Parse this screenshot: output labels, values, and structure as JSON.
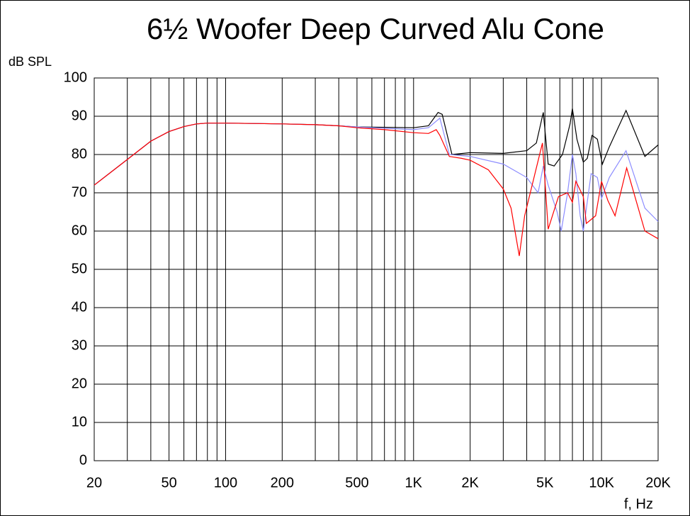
{
  "chart_data": {
    "type": "line",
    "title": "6½ Woofer Deep Curved Alu Cone",
    "ylabel": "dB SPL",
    "xlabel": "f, Hz",
    "xscale": "log",
    "grid": true,
    "xlim": [
      20,
      20000
    ],
    "ylim": [
      0,
      100
    ],
    "xticks": [
      20,
      50,
      100,
      200,
      500,
      {
        "value": 1000,
        "label": "1K"
      },
      {
        "value": 2000,
        "label": "2K"
      },
      {
        "value": 5000,
        "label": "5K"
      },
      {
        "value": 10000,
        "label": "10K"
      },
      {
        "value": 20000,
        "label": "20K"
      }
    ],
    "xminor": [
      30,
      40,
      60,
      70,
      80,
      90,
      300,
      400,
      600,
      700,
      800,
      900,
      3000,
      4000,
      6000,
      7000,
      8000,
      9000
    ],
    "yticks": [
      0,
      10,
      20,
      30,
      40,
      50,
      60,
      70,
      80,
      90,
      100
    ],
    "series": [
      {
        "color": "#000000",
        "x": [
          20,
          30,
          40,
          50,
          60,
          70,
          80,
          100,
          200,
          300,
          400,
          500,
          1000,
          1200,
          1350,
          1420,
          1600,
          2000,
          3000,
          4000,
          4500,
          4900,
          5200,
          5600,
          6200,
          6800,
          7000,
          7400,
          8000,
          8400,
          8900,
          9500,
          10100,
          11000,
          13500,
          17000,
          20000
        ],
        "values": [
          72,
          78.7,
          83.5,
          86,
          87.3,
          88,
          88.2,
          88.2,
          88,
          87.8,
          87.5,
          87.2,
          87,
          87.5,
          91,
          90.5,
          80,
          80.5,
          80.3,
          81,
          83,
          91,
          77.5,
          77,
          80,
          88,
          92,
          84,
          78,
          79,
          85,
          84,
          77.5,
          82,
          91.5,
          79.5,
          82.5
        ]
      },
      {
        "color": "#8c8cff",
        "x": [
          20,
          30,
          40,
          50,
          60,
          70,
          80,
          100,
          200,
          300,
          400,
          500,
          1000,
          1200,
          1380,
          1550,
          2000,
          3000,
          4000,
          4600,
          4900,
          5200,
          5800,
          6100,
          6600,
          7000,
          7300,
          7700,
          8000,
          8800,
          9500,
          10000,
          11000,
          13500,
          17000,
          20000
        ],
        "values": [
          72,
          78.7,
          83.5,
          86,
          87.3,
          88,
          88.2,
          88.2,
          88,
          87.8,
          87.5,
          87.2,
          86.5,
          87,
          89.5,
          80,
          79.5,
          77.5,
          74,
          70,
          77,
          72,
          65,
          60,
          70,
          80,
          75,
          64,
          60,
          75,
          74,
          68.5,
          74,
          81,
          66,
          62.5
        ]
      },
      {
        "color": "#ff0000",
        "x": [
          20,
          30,
          40,
          50,
          60,
          70,
          80,
          100,
          200,
          300,
          400,
          500,
          700,
          1000,
          1200,
          1320,
          1380,
          1550,
          1800,
          2000,
          2500,
          3000,
          3300,
          3650,
          3900,
          4850,
          5200,
          5900,
          6600,
          7000,
          7300,
          8000,
          8300,
          9300,
          10000,
          10800,
          11800,
          13600,
          17000,
          20000
        ],
        "values": [
          72,
          78.7,
          83.5,
          86,
          87.3,
          88,
          88.2,
          88.2,
          88,
          87.8,
          87.5,
          87,
          86.5,
          85.7,
          85.5,
          86.5,
          85,
          79.5,
          79,
          78.5,
          76,
          71,
          66,
          53.5,
          64,
          83,
          60.5,
          69,
          70,
          67.5,
          73,
          69,
          62,
          64,
          73,
          68,
          64,
          76.5,
          60,
          58
        ]
      }
    ]
  }
}
